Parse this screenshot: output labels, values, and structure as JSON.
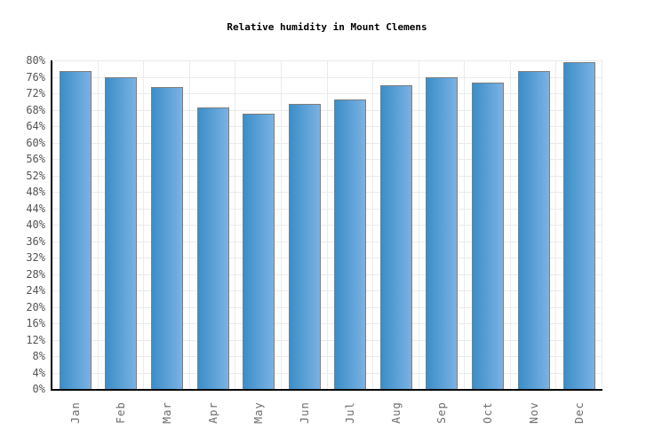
{
  "chart_data": {
    "type": "bar",
    "title": "Relative humidity in Mount Clemens",
    "categories": [
      "Jan",
      "Feb",
      "Mar",
      "Apr",
      "May",
      "Jun",
      "Jul",
      "Aug",
      "Sep",
      "Oct",
      "Nov",
      "Dec"
    ],
    "values": [
      77.5,
      76,
      73.5,
      68.5,
      67,
      69.5,
      70.5,
      74,
      76,
      74.5,
      77.5,
      79.5
    ],
    "unit": "%",
    "xlabel": "",
    "ylabel": "",
    "ylim": [
      0,
      80
    ],
    "ytick_step": 4,
    "ytick_labels": [
      "0%",
      "4%",
      "8%",
      "12%",
      "16%",
      "20%",
      "24%",
      "28%",
      "32%",
      "36%",
      "40%",
      "44%",
      "48%",
      "52%",
      "56%",
      "60%",
      "64%",
      "68%",
      "72%",
      "76%",
      "80%"
    ],
    "xtick_rotation_deg": -90,
    "grid": true,
    "legend": "none",
    "colors": {
      "background": "#ffffff",
      "bar_gradient_left": "#3b8ec7",
      "bar_gradient_right": "#7ab2e5",
      "bar_border": "#7e7e7e",
      "gridline": "#ebebeb",
      "axis": "#000000",
      "ytick_text": "#555555",
      "xtick_text": "#6b6b6b",
      "title_text": "#000000"
    }
  }
}
